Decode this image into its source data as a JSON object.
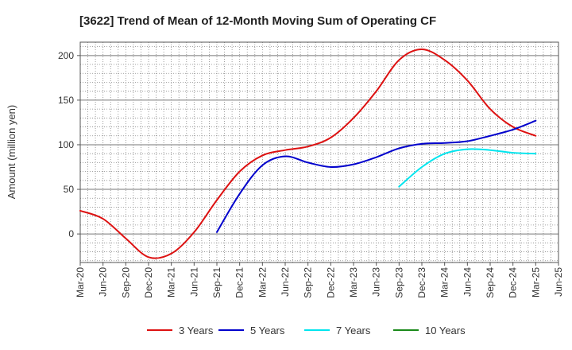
{
  "chart_data": {
    "type": "line",
    "title": "[3622]  Trend of Mean of 12-Month Moving Sum of Operating CF",
    "xlabel": "",
    "ylabel": "Amount (million yen)",
    "ylim": [
      -32,
      215
    ],
    "yticks": [
      0,
      50,
      100,
      150,
      200
    ],
    "grid": true,
    "legend_position": "bottom",
    "categories": [
      "Mar-20",
      "Jun-20",
      "Sep-20",
      "Dec-20",
      "Mar-21",
      "Jun-21",
      "Sep-21",
      "Dec-21",
      "Mar-22",
      "Jun-22",
      "Sep-22",
      "Dec-22",
      "Mar-23",
      "Jun-23",
      "Sep-23",
      "Dec-23",
      "Mar-24",
      "Jun-24",
      "Sep-24",
      "Dec-24",
      "Mar-25",
      "Jun-25"
    ],
    "series": [
      {
        "name": "3 Years",
        "color": "#dd1111",
        "values": [
          26,
          17,
          -5,
          -26,
          -22,
          2,
          38,
          70,
          88,
          94,
          98,
          108,
          130,
          160,
          195,
          207,
          195,
          172,
          140,
          120,
          110,
          null
        ]
      },
      {
        "name": "5 Years",
        "color": "#0000cc",
        "values": [
          null,
          null,
          null,
          null,
          null,
          null,
          2,
          45,
          77,
          87,
          80,
          75,
          78,
          86,
          96,
          101,
          102,
          104,
          110,
          117,
          127,
          null
        ]
      },
      {
        "name": "7 Years",
        "color": "#00e5ee",
        "values": [
          null,
          null,
          null,
          null,
          null,
          null,
          null,
          null,
          null,
          null,
          null,
          null,
          null,
          null,
          53,
          75,
          90,
          95,
          94,
          91,
          90,
          null
        ]
      },
      {
        "name": "10 Years",
        "color": "#1a8a1a",
        "values": [
          null,
          null,
          null,
          null,
          null,
          null,
          null,
          null,
          null,
          null,
          null,
          null,
          null,
          null,
          null,
          null,
          null,
          null,
          null,
          null,
          null,
          null
        ]
      }
    ]
  }
}
